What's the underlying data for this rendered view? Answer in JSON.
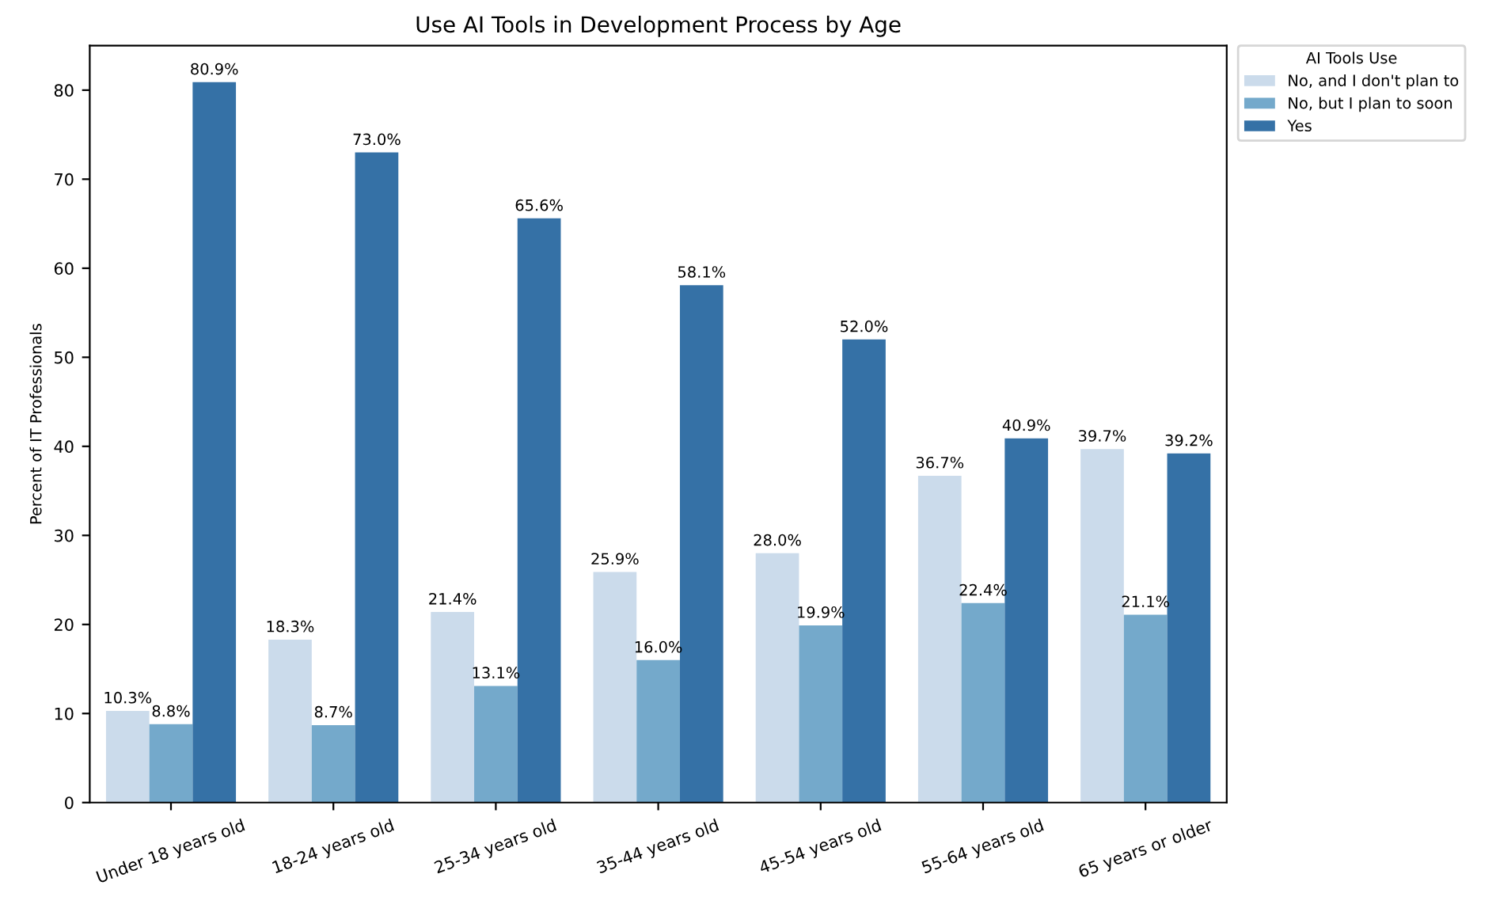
{
  "chart_data": {
    "type": "bar",
    "title": "Use AI Tools in Development Process by Age",
    "ylabel": "Percent of IT Professionals",
    "legend_title": "AI Tools Use",
    "categories": [
      "Under 18 years old",
      "18-24 years old",
      "25-34 years old",
      "35-44 years old",
      "45-54 years old",
      "55-64 years old",
      "65 years or older"
    ],
    "series": [
      {
        "name": "No, and I don't plan to",
        "color": "#cbdbeb",
        "values": [
          10.3,
          18.3,
          21.4,
          25.9,
          28.0,
          36.7,
          39.7
        ],
        "value_labels": [
          "10.3%",
          "18.3%",
          "21.4%",
          "25.9%",
          "28.0%",
          "36.7%",
          "39.7%"
        ]
      },
      {
        "name": "No, but I plan to soon",
        "color": "#74a9cb",
        "values": [
          8.8,
          8.7,
          13.1,
          16.0,
          19.9,
          22.4,
          21.1
        ],
        "value_labels": [
          "8.8%",
          "8.7%",
          "13.1%",
          "16.0%",
          "19.9%",
          "22.4%",
          "21.1%"
        ]
      },
      {
        "name": "Yes",
        "color": "#3571a6",
        "values": [
          80.9,
          73.0,
          65.6,
          58.1,
          52.0,
          40.9,
          39.2
        ],
        "value_labels": [
          "80.9%",
          "73.0%",
          "65.6%",
          "58.1%",
          "52.0%",
          "40.9%",
          "39.2%"
        ]
      }
    ],
    "ylim": [
      0,
      85
    ],
    "yticks": [
      0,
      10,
      20,
      30,
      40,
      50,
      60,
      70,
      80
    ],
    "legend": "top right outside"
  }
}
